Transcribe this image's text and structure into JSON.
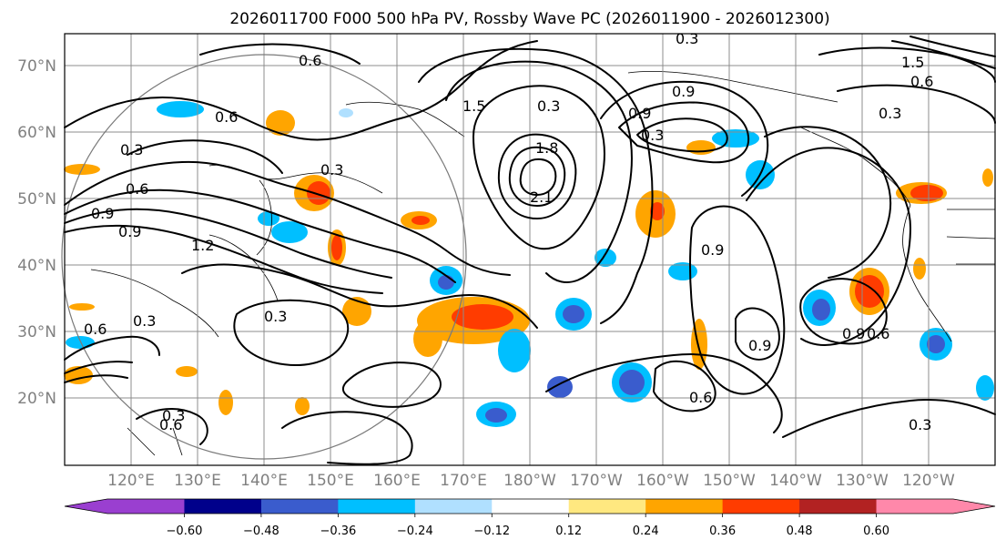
{
  "title": "2026011700 F000 500 hPa PV, Rossby Wave PC (2026011900 - 2026012300)",
  "latitude_labels": [
    "70°N",
    "60°N",
    "50°N",
    "40°N",
    "30°N",
    "20°N"
  ],
  "longitude_labels": [
    "120°E",
    "130°E",
    "140°E",
    "150°E",
    "160°E",
    "170°E",
    "180°W",
    "170°W",
    "160°W",
    "150°W",
    "140°W",
    "130°W",
    "120°W"
  ],
  "colorbar": {
    "ticks": [
      "−0.60",
      "−0.48",
      "−0.36",
      "−0.24",
      "−0.12",
      "0.12",
      "0.24",
      "0.36",
      "0.48",
      "0.60"
    ],
    "colors": [
      "#9a3fd0",
      "#00008b",
      "#3a5ccd",
      "#00bfff",
      "#b0e0ff",
      "#ffffff",
      "#ffe880",
      "#ffa500",
      "#ff3c00",
      "#b22222",
      "#ff88aa"
    ],
    "under_color": "#9a3fd0",
    "over_color": "#ff88aa"
  },
  "contour_labels": [
    "0.3",
    "0.6",
    "0.9",
    "1.5",
    "0.3",
    "0.3",
    "0.9",
    "0.3",
    "0.6",
    "0.3",
    "0.6",
    "0.9",
    "1.2",
    "0.3",
    "0.9",
    "0.6",
    "0.6",
    "0.3",
    "2.1",
    "1.8",
    "0.9",
    "0.9",
    "0.9",
    "0.6",
    "0.3",
    "0.6",
    "0.3",
    "0.3",
    "1.5",
    "0.6"
  ],
  "style": {
    "grid_color": "#8c8c8c",
    "contour_color": "#000000",
    "circle_color": "#7a7a7a"
  }
}
